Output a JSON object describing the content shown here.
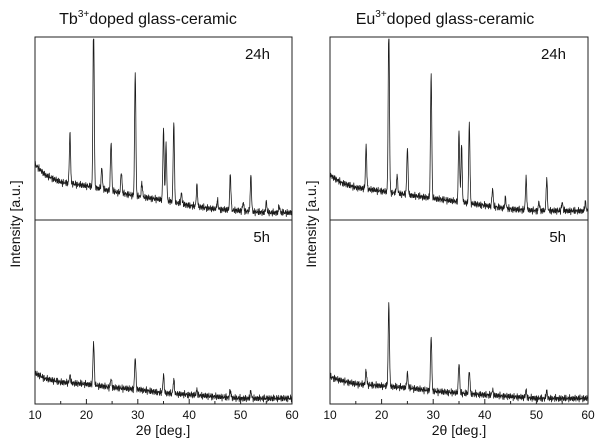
{
  "chart_data": [
    {
      "type": "line",
      "title_parts": [
        "Tb",
        "3+",
        "doped glass-ceramic"
      ],
      "xlabel_parts": [
        "2",
        "θ",
        " [deg.]"
      ],
      "ylabel": "Intensity [a.u.]",
      "xlim": [
        10,
        60
      ],
      "xticks": [
        "10",
        "20",
        "30",
        "40",
        "50",
        "60"
      ],
      "grid": false,
      "panels": [
        {
          "label": "24h",
          "baseline": [
            [
              10,
              0.3
            ],
            [
              12,
              0.24
            ],
            [
              15,
              0.2
            ],
            [
              20,
              0.18
            ],
            [
              25,
              0.15
            ],
            [
              30,
              0.12
            ],
            [
              35,
              0.1
            ],
            [
              40,
              0.07
            ],
            [
              45,
              0.05
            ],
            [
              50,
              0.04
            ],
            [
              55,
              0.03
            ],
            [
              60,
              0.03
            ]
          ],
          "peaks": [
            [
              16.8,
              0.28
            ],
            [
              21.4,
              0.95
            ],
            [
              23.0,
              0.12
            ],
            [
              24.8,
              0.28
            ],
            [
              26.8,
              0.12
            ],
            [
              29.5,
              0.7
            ],
            [
              30.8,
              0.08
            ],
            [
              35.0,
              0.4
            ],
            [
              35.5,
              0.32
            ],
            [
              37.0,
              0.45
            ],
            [
              38.5,
              0.06
            ],
            [
              41.5,
              0.12
            ],
            [
              45.5,
              0.05
            ],
            [
              48.0,
              0.2
            ],
            [
              50.5,
              0.05
            ],
            [
              52.0,
              0.2
            ],
            [
              55.0,
              0.06
            ],
            [
              57.5,
              0.04
            ]
          ]
        },
        {
          "label": "5h",
          "baseline": [
            [
              10,
              0.16
            ],
            [
              12,
              0.13
            ],
            [
              15,
              0.11
            ],
            [
              20,
              0.1
            ],
            [
              25,
              0.08
            ],
            [
              30,
              0.07
            ],
            [
              35,
              0.05
            ],
            [
              40,
              0.04
            ],
            [
              45,
              0.03
            ],
            [
              50,
              0.02
            ],
            [
              55,
              0.02
            ],
            [
              60,
              0.02
            ]
          ],
          "peaks": [
            [
              16.8,
              0.04
            ],
            [
              21.4,
              0.24
            ],
            [
              24.8,
              0.05
            ],
            [
              29.5,
              0.18
            ],
            [
              35.0,
              0.1
            ],
            [
              37.0,
              0.08
            ],
            [
              41.5,
              0.03
            ],
            [
              48.0,
              0.04
            ],
            [
              52.0,
              0.04
            ]
          ]
        }
      ]
    },
    {
      "type": "line",
      "title_parts": [
        "Eu",
        "3+",
        "doped glass-ceramic"
      ],
      "xlabel_parts": [
        "2",
        "θ",
        " [deg.]"
      ],
      "ylabel": "Intensity [a.u.]",
      "xlim": [
        10,
        60
      ],
      "xticks": [
        "10",
        "20",
        "30",
        "40",
        "50",
        "60"
      ],
      "grid": false,
      "panels": [
        {
          "label": "24h",
          "baseline": [
            [
              10,
              0.24
            ],
            [
              12,
              0.2
            ],
            [
              15,
              0.17
            ],
            [
              20,
              0.15
            ],
            [
              25,
              0.13
            ],
            [
              30,
              0.11
            ],
            [
              35,
              0.09
            ],
            [
              40,
              0.07
            ],
            [
              45,
              0.05
            ],
            [
              50,
              0.04
            ],
            [
              55,
              0.04
            ],
            [
              60,
              0.04
            ]
          ],
          "peaks": [
            [
              17.0,
              0.24
            ],
            [
              21.4,
              0.95
            ],
            [
              23.0,
              0.1
            ],
            [
              25.0,
              0.26
            ],
            [
              29.6,
              0.7
            ],
            [
              35.0,
              0.4
            ],
            [
              35.5,
              0.32
            ],
            [
              37.0,
              0.45
            ],
            [
              41.5,
              0.1
            ],
            [
              44.0,
              0.06
            ],
            [
              48.0,
              0.18
            ],
            [
              50.5,
              0.05
            ],
            [
              52.0,
              0.18
            ],
            [
              55.0,
              0.05
            ],
            [
              59.5,
              0.05
            ]
          ]
        },
        {
          "label": "5h",
          "baseline": [
            [
              10,
              0.14
            ],
            [
              12,
              0.12
            ],
            [
              15,
              0.1
            ],
            [
              20,
              0.09
            ],
            [
              25,
              0.08
            ],
            [
              30,
              0.06
            ],
            [
              35,
              0.05
            ],
            [
              40,
              0.04
            ],
            [
              45,
              0.03
            ],
            [
              50,
              0.02
            ],
            [
              55,
              0.02
            ],
            [
              60,
              0.02
            ]
          ],
          "peaks": [
            [
              17.0,
              0.08
            ],
            [
              21.4,
              0.46
            ],
            [
              25.0,
              0.08
            ],
            [
              29.6,
              0.31
            ],
            [
              35.0,
              0.17
            ],
            [
              37.0,
              0.13
            ],
            [
              41.5,
              0.03
            ],
            [
              48.0,
              0.04
            ],
            [
              52.0,
              0.04
            ]
          ]
        }
      ]
    }
  ]
}
